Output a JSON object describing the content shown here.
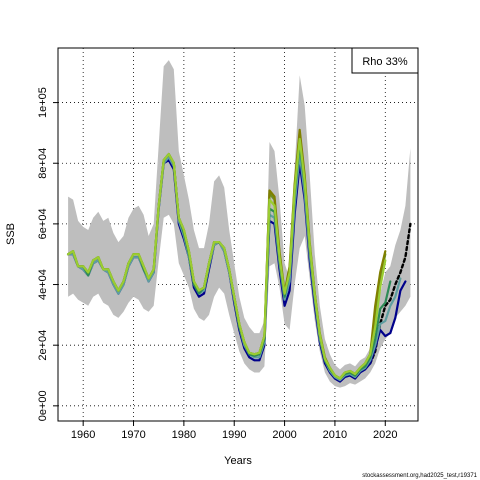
{
  "chart_data": {
    "type": "line",
    "xlabel": "Years",
    "ylabel": "SSB",
    "xlim": [
      1955,
      2026.5
    ],
    "ylim": [
      -5000,
      118000
    ],
    "xticks": [
      1960,
      1970,
      1980,
      1990,
      2000,
      2010,
      2020
    ],
    "xtick_labels": [
      "1960",
      "1970",
      "1980",
      "1990",
      "2000",
      "2010",
      "2020"
    ],
    "yticks": [
      0,
      20000,
      40000,
      60000,
      80000,
      100000
    ],
    "ytick_labels": [
      "0e+00",
      "2e+04",
      "4e+04",
      "6e+04",
      "8e+04",
      "1e+05"
    ],
    "grid": true,
    "legend": {
      "placement": "top-right",
      "text": "Rho 33%"
    },
    "footer": "stockassessment.org,had2025_test,r19371",
    "band": {
      "color": "#bebebe",
      "x": [
        1957,
        1958,
        1959,
        1960,
        1961,
        1962,
        1963,
        1964,
        1965,
        1966,
        1967,
        1968,
        1969,
        1970,
        1971,
        1972,
        1973,
        1974,
        1975,
        1976,
        1977,
        1978,
        1979,
        1980,
        1981,
        1982,
        1983,
        1984,
        1985,
        1986,
        1987,
        1988,
        1989,
        1990,
        1991,
        1992,
        1993,
        1994,
        1995,
        1996,
        1997,
        1998,
        1999,
        2000,
        2001,
        2002,
        2003,
        2004,
        2005,
        2006,
        2007,
        2008,
        2009,
        2010,
        2011,
        2012,
        2013,
        2014,
        2015,
        2016,
        2017,
        2018,
        2019,
        2020,
        2021,
        2022,
        2023,
        2024,
        2025
      ],
      "lower": [
        36000,
        37000,
        35000,
        34000,
        33000,
        36000,
        37000,
        34000,
        33000,
        30000,
        29000,
        31000,
        34000,
        36000,
        35000,
        32000,
        31000,
        33000,
        48000,
        62000,
        63000,
        60000,
        47000,
        43000,
        39000,
        32000,
        29000,
        28000,
        30000,
        36000,
        39000,
        37000,
        30000,
        24000,
        18000,
        14000,
        12000,
        11000,
        11000,
        13000,
        46000,
        47000,
        39000,
        27000,
        25000,
        40000,
        52000,
        56000,
        42000,
        28000,
        18000,
        11000,
        8000,
        6500,
        6000,
        6500,
        7500,
        7000,
        8000,
        9000,
        11000,
        14000,
        19000,
        22000,
        24000,
        29000,
        31000,
        33000,
        36000
      ],
      "upper": [
        69000,
        68000,
        61000,
        59000,
        58000,
        62000,
        64000,
        61000,
        62000,
        57000,
        54000,
        56000,
        62000,
        65000,
        66000,
        63000,
        56000,
        60000,
        86000,
        112000,
        114000,
        111000,
        84000,
        76000,
        68000,
        58000,
        52000,
        52000,
        60000,
        74000,
        76000,
        72000,
        58000,
        47000,
        36000,
        29000,
        26000,
        24000,
        24000,
        28000,
        87000,
        84000,
        68000,
        47000,
        42000,
        78000,
        109000,
        99000,
        76000,
        50000,
        33000,
        22000,
        17000,
        13500,
        12000,
        13500,
        14000,
        13000,
        15000,
        16000,
        19000,
        24000,
        37000,
        44000,
        46000,
        53000,
        58000,
        66000,
        85000
      ]
    },
    "series": [
      {
        "color": "#000000",
        "dashed": true,
        "x": [
          2017,
          2018,
          2019,
          2020,
          2021,
          2022,
          2023,
          2024,
          2025
        ],
        "y": [
          14000,
          18000,
          27000,
          33000,
          35000,
          40000,
          44000,
          49000,
          60000
        ]
      },
      {
        "color": "#00008b",
        "dashed": false,
        "x": [
          1957,
          1958,
          1959,
          1960,
          1961,
          1962,
          1963,
          1964,
          1965,
          1966,
          1967,
          1968,
          1969,
          1970,
          1971,
          1972,
          1973,
          1974,
          1975,
          1976,
          1977,
          1978,
          1979,
          1980,
          1981,
          1982,
          1983,
          1984,
          1985,
          1986,
          1987,
          1988,
          1989,
          1990,
          1991,
          1992,
          1993,
          1994,
          1995,
          1996,
          1997,
          1998,
          1999,
          2000,
          2001,
          2002,
          2003,
          2004,
          2005,
          2006,
          2007,
          2008,
          2009,
          2010,
          2011,
          2012,
          2013,
          2014,
          2015,
          2016,
          2017,
          2018,
          2019,
          2020,
          2021,
          2022,
          2023,
          2024
        ],
        "y": [
          50000,
          50000,
          46000,
          45000,
          43000,
          47000,
          48000,
          45000,
          44000,
          40000,
          37000,
          40000,
          46000,
          49000,
          49000,
          45000,
          41000,
          44000,
          65000,
          80000,
          81000,
          78000,
          60000,
          55000,
          49000,
          39000,
          36000,
          37000,
          45000,
          53000,
          54000,
          51000,
          44000,
          34000,
          25000,
          19000,
          16000,
          15000,
          15000,
          20000,
          61000,
          60000,
          45000,
          33000,
          38000,
          63000,
          80000,
          68000,
          48000,
          33000,
          21000,
          14000,
          11000,
          9000,
          8000,
          9500,
          10000,
          9000,
          11000,
          12000,
          14000,
          19000,
          25000,
          23000,
          24000,
          29000,
          38000,
          41000
        ]
      },
      {
        "color": "#5f9ea0",
        "dashed": false,
        "x": [
          1957,
          1958,
          1959,
          1960,
          1961,
          1962,
          1963,
          1964,
          1965,
          1966,
          1967,
          1968,
          1969,
          1970,
          1971,
          1972,
          1973,
          1974,
          1975,
          1976,
          1977,
          1978,
          1979,
          1980,
          1981,
          1982,
          1983,
          1984,
          1985,
          1986,
          1987,
          1988,
          1989,
          1990,
          1991,
          1992,
          1993,
          1994,
          1995,
          1996,
          1997,
          1998,
          1999,
          2000,
          2001,
          2002,
          2003,
          2004,
          2005,
          2006,
          2007,
          2008,
          2009,
          2010,
          2011,
          2012,
          2013,
          2014,
          2015,
          2016,
          2017,
          2018,
          2019,
          2020,
          2021,
          2022,
          2023
        ],
        "y": [
          50000,
          50000,
          46000,
          45000,
          43000,
          47000,
          48000,
          45000,
          44000,
          40000,
          37000,
          40000,
          46000,
          49000,
          49000,
          45000,
          41000,
          44000,
          65000,
          80000,
          82000,
          79000,
          61000,
          56000,
          49000,
          40000,
          37000,
          38000,
          46000,
          53000,
          54000,
          51000,
          44000,
          35000,
          26000,
          20000,
          17000,
          16000,
          16000,
          21000,
          63000,
          62000,
          47000,
          35000,
          41000,
          66000,
          83000,
          70000,
          50000,
          35000,
          22000,
          15000,
          11500,
          9500,
          8500,
          10000,
          10500,
          9500,
          11500,
          12500,
          15000,
          20000,
          27000,
          28000,
          33000,
          36000,
          42000
        ]
      },
      {
        "color": "#2e8b57",
        "dashed": false,
        "x": [
          1957,
          1958,
          1959,
          1960,
          1961,
          1962,
          1963,
          1964,
          1965,
          1966,
          1967,
          1968,
          1969,
          1970,
          1971,
          1972,
          1973,
          1974,
          1975,
          1976,
          1977,
          1978,
          1979,
          1980,
          1981,
          1982,
          1983,
          1984,
          1985,
          1986,
          1987,
          1988,
          1989,
          1990,
          1991,
          1992,
          1993,
          1994,
          1995,
          1996,
          1997,
          1998,
          1999,
          2000,
          2001,
          2002,
          2003,
          2004,
          2005,
          2006,
          2007,
          2008,
          2009,
          2010,
          2011,
          2012,
          2013,
          2014,
          2015,
          2016,
          2017,
          2018,
          2019,
          2020,
          2021
        ],
        "y": [
          50000,
          51000,
          46000,
          46000,
          43000,
          48000,
          49000,
          45000,
          45000,
          41000,
          38000,
          41000,
          47000,
          50000,
          50000,
          45000,
          42000,
          45000,
          66000,
          81000,
          83000,
          80000,
          62000,
          57000,
          50000,
          40000,
          37000,
          39000,
          47000,
          54000,
          54000,
          52000,
          45000,
          36000,
          26000,
          21000,
          17000,
          16500,
          17000,
          22000,
          65000,
          64000,
          48000,
          36000,
          44000,
          70000,
          86000,
          73000,
          52000,
          36000,
          23000,
          15000,
          12000,
          10000,
          9000,
          10500,
          11000,
          10000,
          12000,
          13000,
          16000,
          22000,
          32000,
          34000,
          41000
        ]
      },
      {
        "color": "#6b8e23",
        "dashed": false,
        "x": [
          1957,
          1958,
          1959,
          1960,
          1961,
          1962,
          1963,
          1964,
          1965,
          1966,
          1967,
          1968,
          1969,
          1970,
          1971,
          1972,
          1973,
          1974,
          1975,
          1976,
          1977,
          1978,
          1979,
          1980,
          1981,
          1982,
          1983,
          1984,
          1985,
          1986,
          1987,
          1988,
          1989,
          1990,
          1991,
          1992,
          1993,
          1994,
          1995,
          1996,
          1997,
          1998,
          1999,
          2000,
          2001,
          2002,
          2003,
          2004,
          2005,
          2006,
          2007,
          2008,
          2009,
          2010,
          2011,
          2012,
          2013,
          2014,
          2015,
          2016,
          2017,
          2018,
          2019,
          2020
        ],
        "y": [
          50000,
          51000,
          46000,
          46000,
          44000,
          48000,
          49000,
          45000,
          45000,
          41000,
          38000,
          41000,
          47000,
          50000,
          50000,
          46000,
          42000,
          45000,
          66000,
          81000,
          83000,
          80000,
          62000,
          58000,
          51000,
          41000,
          38000,
          39000,
          47000,
          54000,
          54000,
          52000,
          45000,
          36000,
          27000,
          21000,
          17500,
          17000,
          17500,
          23000,
          70000,
          68000,
          50000,
          37000,
          45000,
          72000,
          90000,
          75000,
          53000,
          37000,
          23500,
          15500,
          12500,
          10000,
          9000,
          11000,
          11500,
          10500,
          12500,
          14000,
          17000,
          28000,
          42000,
          50000
        ]
      },
      {
        "color": "#808000",
        "dashed": false,
        "x": [
          1957,
          1958,
          1959,
          1960,
          1961,
          1962,
          1963,
          1964,
          1965,
          1966,
          1967,
          1968,
          1969,
          1970,
          1971,
          1972,
          1973,
          1974,
          1975,
          1976,
          1977,
          1978,
          1979,
          1980,
          1981,
          1982,
          1983,
          1984,
          1985,
          1986,
          1987,
          1988,
          1989,
          1990,
          1991,
          1992,
          1993,
          1994,
          1995,
          1996,
          1997,
          1998,
          1999,
          2000,
          2001,
          2002,
          2003,
          2004,
          2005,
          2006,
          2007,
          2008,
          2009,
          2010,
          2011,
          2012,
          2013,
          2014,
          2015,
          2016,
          2017,
          2018,
          2019,
          2020
        ],
        "y": [
          50000,
          51000,
          46000,
          46000,
          44000,
          48000,
          49000,
          45000,
          45000,
          41000,
          38000,
          41000,
          47000,
          50000,
          50000,
          46000,
          42000,
          45000,
          66000,
          81000,
          83000,
          80000,
          62000,
          58000,
          51000,
          41000,
          38000,
          39000,
          47000,
          54000,
          54000,
          52000,
          45000,
          36000,
          27000,
          21000,
          17500,
          17000,
          17500,
          23000,
          71000,
          69000,
          51000,
          37500,
          46000,
          73000,
          91000,
          76000,
          54000,
          37000,
          24000,
          16000,
          12500,
          10000,
          9000,
          11000,
          11500,
          10500,
          12500,
          14000,
          17000,
          33000,
          44000,
          51000
        ]
      },
      {
        "color": "#9acd32",
        "dashed": false,
        "x": [
          1957,
          1958,
          1959,
          1960,
          1961,
          1962,
          1963,
          1964,
          1965,
          1966,
          1967,
          1968,
          1969,
          1970,
          1971,
          1972,
          1973,
          1974,
          1975,
          1976,
          1977,
          1978,
          1979,
          1980,
          1981,
          1982,
          1983,
          1984,
          1985,
          1986,
          1987,
          1988,
          1989,
          1990,
          1991,
          1992,
          1993,
          1994,
          1995,
          1996,
          1997,
          1998,
          1999,
          2000,
          2001,
          2002,
          2003,
          2004,
          2005,
          2006,
          2007,
          2008,
          2009,
          2010,
          2011,
          2012,
          2013,
          2014,
          2015,
          2016,
          2017,
          2018,
          2019,
          2020
        ],
        "y": [
          50000,
          51000,
          46000,
          46000,
          44000,
          48000,
          49000,
          45000,
          45000,
          41000,
          38000,
          41000,
          47000,
          50000,
          50000,
          46000,
          42000,
          45000,
          66000,
          81000,
          83000,
          80000,
          62000,
          58000,
          51000,
          41000,
          38000,
          39000,
          47000,
          54000,
          54000,
          52000,
          45000,
          36000,
          27000,
          21000,
          17500,
          17000,
          17500,
          23000,
          68000,
          66000,
          49000,
          37000,
          44000,
          71000,
          88000,
          74000,
          53000,
          36500,
          23500,
          15500,
          12500,
          10000,
          9000,
          11000,
          11500,
          10500,
          12500,
          14000,
          17000,
          26000,
          39000,
          48000
        ]
      }
    ]
  }
}
